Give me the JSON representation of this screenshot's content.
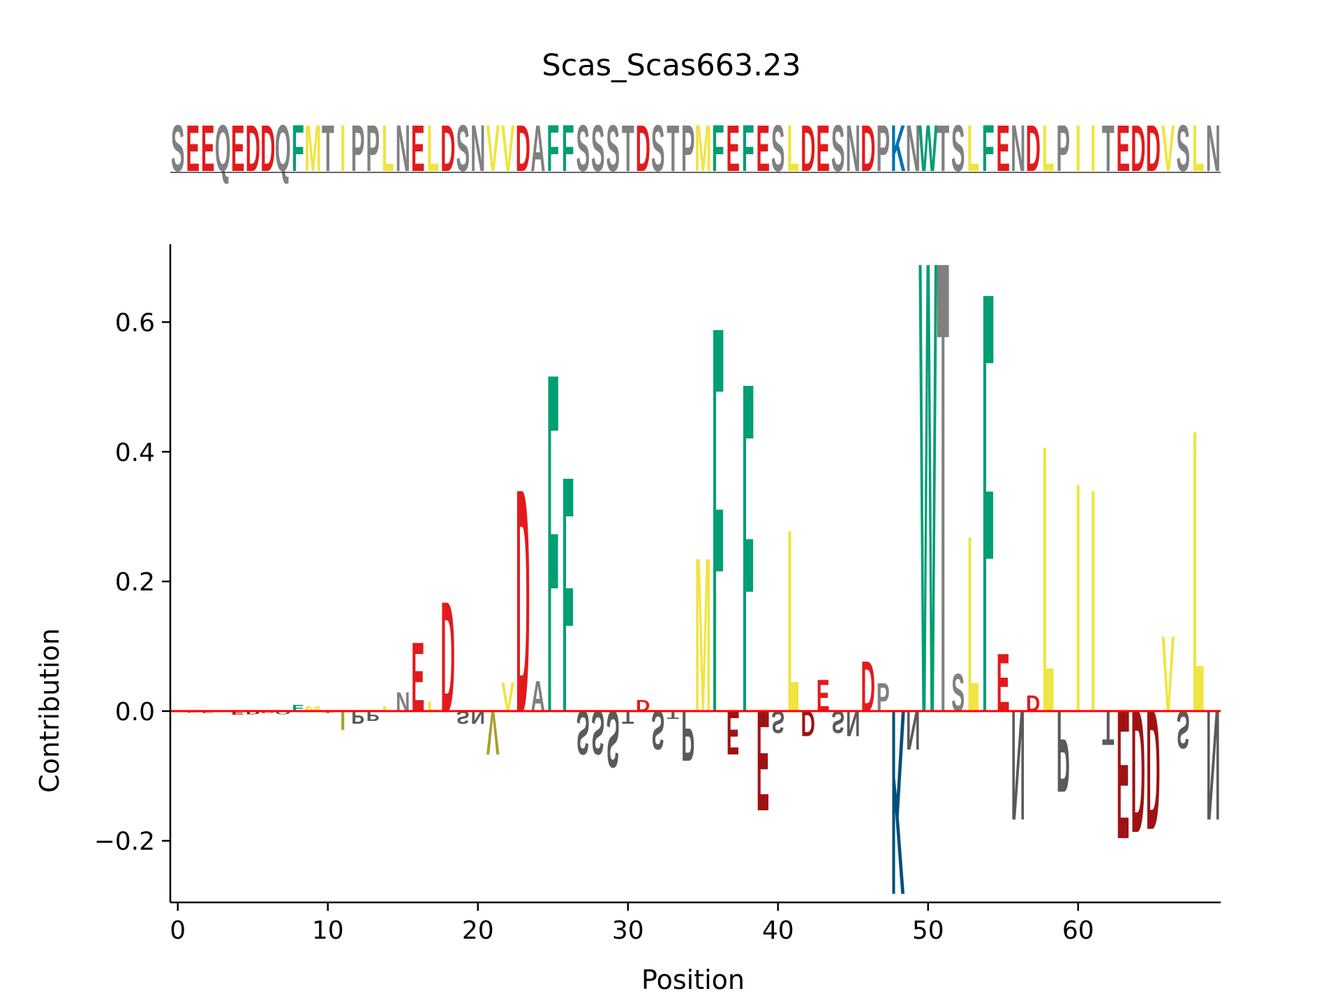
{
  "chart_data": {
    "type": "sequence-logo",
    "title": "Scas_Scas663.23",
    "xlabel": "Position",
    "ylabel": "Contribution",
    "xlim": [
      -0.5,
      69.5
    ],
    "ylim": [
      -0.295,
      0.72
    ],
    "xticks": [
      0,
      10,
      20,
      30,
      40,
      50,
      60
    ],
    "yticks": [
      -0.2,
      0.0,
      0.2,
      0.4,
      0.6
    ],
    "ytick_labels": [
      "−0.2",
      "0.0",
      "0.2",
      "0.4",
      "0.6"
    ],
    "sequence": "SEEQEDDQFMTIPPLNELDSNVVDAFFSSSTDSTPMFEFESLDESNDPKNWTSLFENDLPIITEDDVSLN",
    "contributions": [
      0.0,
      -0.002,
      -0.003,
      0.0,
      -0.006,
      -0.005,
      -0.003,
      -0.005,
      0.01,
      0.008,
      -0.003,
      -0.03,
      -0.02,
      -0.016,
      0.008,
      0.03,
      0.11,
      0.016,
      0.175,
      -0.02,
      -0.02,
      -0.07,
      0.046,
      0.355,
      0.048,
      0.54,
      0.375,
      -0.07,
      -0.07,
      -0.09,
      -0.02,
      0.018,
      -0.062,
      -0.012,
      -0.08,
      0.245,
      0.615,
      -0.07,
      0.525,
      -0.16,
      -0.035,
      0.29,
      -0.04,
      0.05,
      -0.035,
      -0.04,
      0.08,
      0.045,
      -0.295,
      -0.062,
      0.72,
      0.72,
      0.06,
      0.28,
      0.67,
      0.092,
      -0.175,
      0.025,
      0.425,
      -0.13,
      0.365,
      0.355,
      -0.055,
      -0.205,
      -0.195,
      -0.19,
      0.12,
      -0.06,
      0.45,
      -0.175
    ],
    "color_groups": {
      "acidic": {
        "residues": "DE",
        "color": "#e31a1c"
      },
      "aromatic": {
        "residues": "FW",
        "color": "#009e73"
      },
      "hydrophobic": {
        "residues": "ILMV",
        "color": "#f0e442"
      },
      "basic": {
        "residues": "HKR",
        "color": "#0072b2"
      },
      "other": {
        "residues": "ACGNPQSTY",
        "color": "#808080"
      }
    },
    "negative_color_shift": "darken",
    "baseline_color": "#ff0000",
    "grid": false
  }
}
